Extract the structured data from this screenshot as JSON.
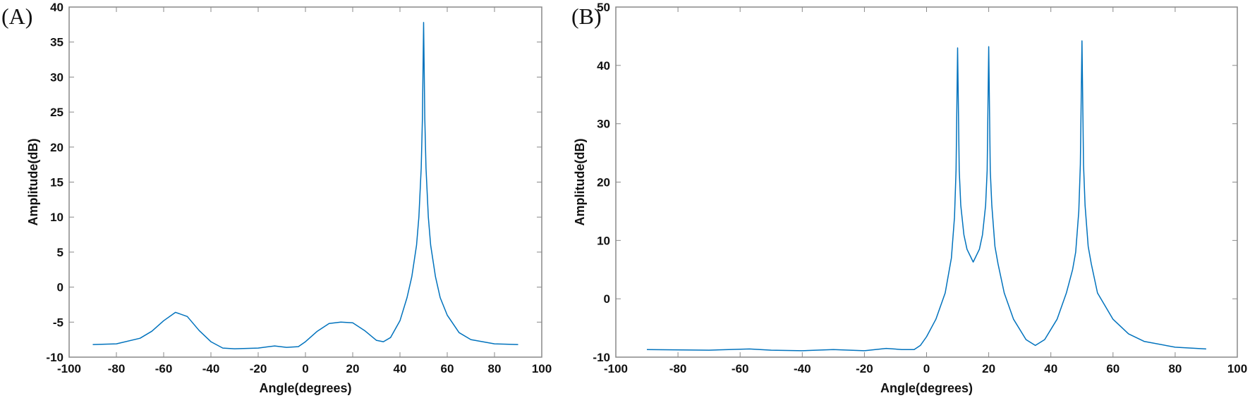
{
  "chart_data": [
    {
      "type": "line",
      "panel_label": "(A)",
      "xlabel": "Angle(degrees)",
      "ylabel": "Amplitude(dB)",
      "xlim": [
        -100,
        100
      ],
      "ylim": [
        -10,
        40
      ],
      "xticks": [
        -100,
        -80,
        -60,
        -40,
        -20,
        0,
        20,
        40,
        60,
        80,
        100
      ],
      "yticks": [
        -10,
        -5,
        0,
        5,
        10,
        15,
        20,
        25,
        30,
        35,
        40
      ],
      "color": "#0072BD",
      "grid": false,
      "x": [
        -90,
        -80,
        -70,
        -65,
        -60,
        -55,
        -50,
        -45,
        -40,
        -35,
        -30,
        -20,
        -13,
        -8,
        -3,
        0,
        5,
        10,
        15,
        20,
        25,
        30,
        33,
        36,
        40,
        43,
        45,
        47,
        48,
        49,
        49.5,
        50,
        50.5,
        51,
        52,
        53,
        55,
        57,
        60,
        65,
        70,
        80,
        90
      ],
      "y": [
        -8.2,
        -8.1,
        -7.3,
        -6.3,
        -4.8,
        -3.6,
        -4.2,
        -6.2,
        -7.8,
        -8.7,
        -8.8,
        -8.7,
        -8.4,
        -8.6,
        -8.5,
        -7.8,
        -6.3,
        -5.2,
        -5.0,
        -5.1,
        -6.2,
        -7.6,
        -7.8,
        -7.2,
        -4.8,
        -1.5,
        1.5,
        6,
        10,
        17,
        24,
        37.8,
        24,
        17,
        10,
        6,
        1.5,
        -1.5,
        -4,
        -6.5,
        -7.5,
        -8.1,
        -8.2
      ]
    },
    {
      "type": "line",
      "panel_label": "(B)",
      "xlabel": "Angle(degrees)",
      "ylabel": "Amplitude(dB)",
      "xlim": [
        -100,
        100
      ],
      "ylim": [
        -10,
        50
      ],
      "xticks": [
        -100,
        -80,
        -60,
        -40,
        -20,
        0,
        20,
        40,
        60,
        80,
        100
      ],
      "yticks": [
        -10,
        0,
        10,
        20,
        30,
        40,
        50
      ],
      "color": "#0072BD",
      "grid": false,
      "x": [
        -90,
        -70,
        -57,
        -50,
        -40,
        -30,
        -20,
        -13,
        -8,
        -4,
        -2,
        0,
        3,
        6,
        8,
        9,
        9.5,
        10,
        10.5,
        11,
        12,
        13,
        15,
        17,
        18,
        19,
        19.5,
        20,
        20.5,
        21,
        22,
        23,
        25,
        28,
        32,
        35,
        38,
        42,
        45,
        47,
        48,
        49,
        49.5,
        50,
        50.5,
        51,
        52,
        53,
        55,
        60,
        65,
        70,
        80,
        90
      ],
      "y": [
        -8.7,
        -8.8,
        -8.6,
        -8.8,
        -8.9,
        -8.7,
        -8.9,
        -8.5,
        -8.7,
        -8.7,
        -8,
        -6.5,
        -3.5,
        1,
        7,
        14,
        22,
        43,
        22,
        16,
        11,
        8.5,
        6.3,
        8.5,
        11,
        16,
        22,
        43.2,
        22,
        16,
        9,
        6,
        1,
        -3.5,
        -7,
        -8,
        -7,
        -3.5,
        1,
        5,
        8,
        15,
        23,
        44.2,
        23,
        16,
        9,
        6,
        1,
        -3.5,
        -6,
        -7.3,
        -8.3,
        -8.6
      ]
    }
  ]
}
